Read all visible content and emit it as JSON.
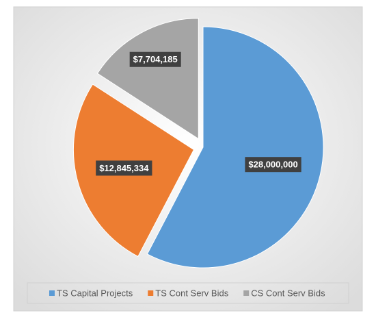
{
  "chart_data": {
    "type": "pie",
    "categories": [
      "TS Capital Projects",
      "TS Cont Serv Bids",
      "CS Cont Serv Bids"
    ],
    "values": [
      28000000,
      12845334,
      7704185
    ],
    "value_labels": [
      "$28,000,000",
      "$12,845,334",
      "$7,704,185"
    ],
    "colors": [
      "#5b9bd5",
      "#ed7d31",
      "#a5a5a5"
    ],
    "legend": "bottom"
  }
}
